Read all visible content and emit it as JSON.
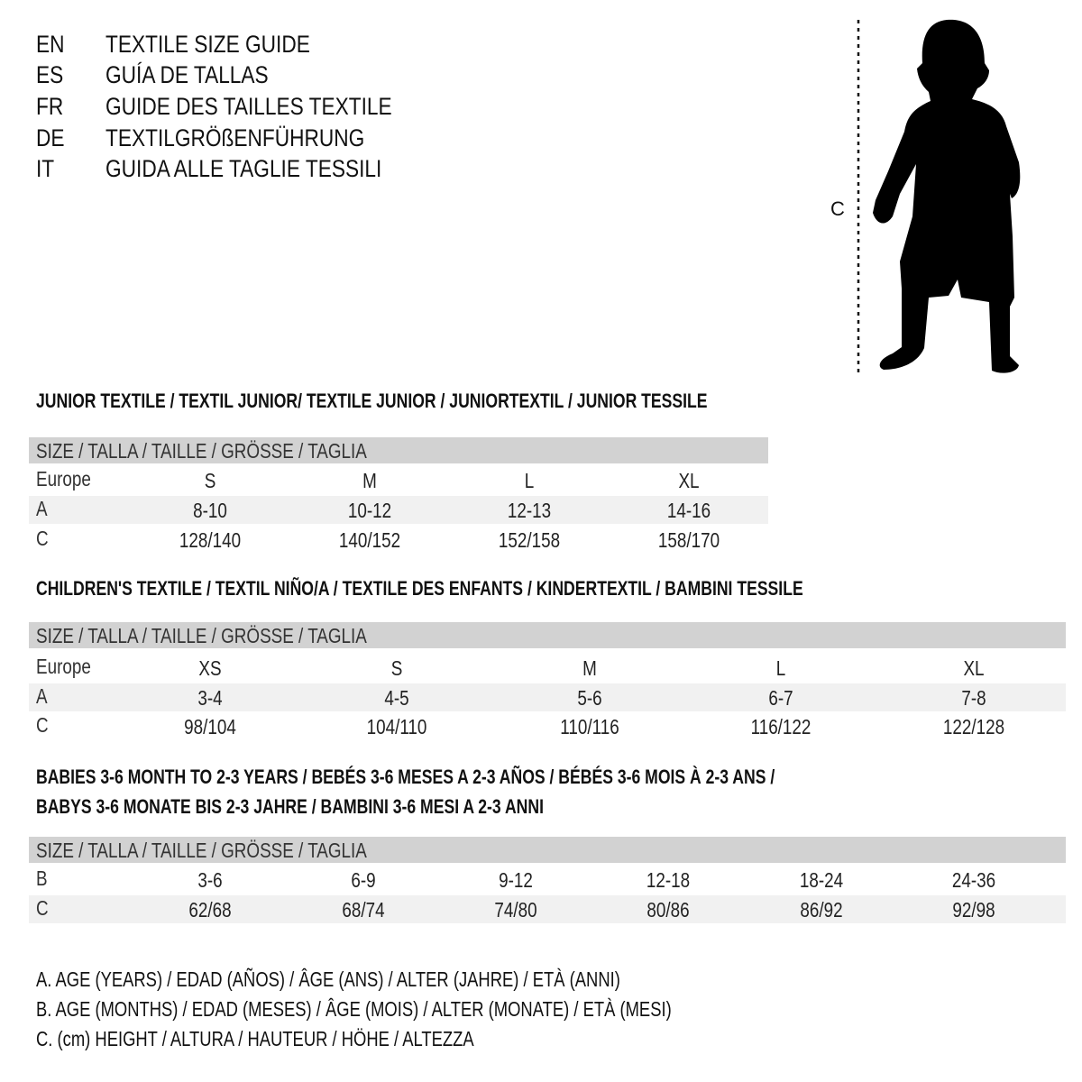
{
  "title_lines": [
    {
      "code": "EN",
      "text": "TEXTILE SIZE GUIDE"
    },
    {
      "code": "ES",
      "text": "GUÍA DE TALLAS"
    },
    {
      "code": "FR",
      "text": "GUIDE DES TAILLES TEXTILE"
    },
    {
      "code": "DE",
      "text": "TEXTILGRÖßENFÜHRUNG"
    },
    {
      "code": "IT",
      "text": "GUIDA ALLE TAGLIE TESSILI"
    }
  ],
  "figure": {
    "measure_label": "C",
    "icon": "child-silhouette-icon"
  },
  "colors": {
    "header_bar": "#d2d2d2",
    "shaded_row": "#f1f1f1",
    "text": "#111111"
  },
  "sections": [
    {
      "title": [
        "JUNIOR TEXTILE / TEXTIL JUNIOR/ TEXTILE JUNIOR / JUNIORTEXTIL / JUNIOR TESSILE"
      ],
      "size_header": "SIZE / TALLA / TAILLE / GRÖSSE / TAGLIA",
      "rows": [
        {
          "label": "Europe",
          "values": [
            "S",
            "M",
            "L",
            "XL"
          ]
        },
        {
          "label": "A",
          "values": [
            "8-10",
            "10-12",
            "12-13",
            "14-16"
          ]
        },
        {
          "label": "C",
          "values": [
            "128/140",
            "140/152",
            "152/158",
            "158/170"
          ]
        }
      ]
    },
    {
      "title": [
        "CHILDREN'S TEXTILE / TEXTIL NIÑO/A / TEXTILE DES ENFANTS / KINDERTEXTIL / BAMBINI TESSILE"
      ],
      "size_header": "SIZE / TALLA / TAILLE / GRÖSSE / TAGLIA",
      "rows": [
        {
          "label": "Europe",
          "values": [
            "XS",
            "S",
            "M",
            "L",
            "XL"
          ]
        },
        {
          "label": "A",
          "values": [
            "3-4",
            "4-5",
            "5-6",
            "6-7",
            "7-8"
          ]
        },
        {
          "label": "C",
          "values": [
            "98/104",
            "104/110",
            "110/116",
            "116/122",
            "122/128"
          ]
        }
      ]
    },
    {
      "title": [
        "BABIES 3-6 MONTH TO 2-3 YEARS / BEBÉS 3-6 MESES A 2-3 AÑOS / BÉBÉS 3-6 MOIS À 2-3 ANS /",
        "BABYS 3-6 MONATE BIS 2-3 JAHRE / BAMBINI 3-6 MESI A 2-3 ANNI"
      ],
      "size_header": "SIZE / TALLA / TAILLE / GRÖSSE / TAGLIA",
      "rows": [
        {
          "label": "B",
          "values": [
            "3-6",
            "6-9",
            "9-12",
            "12-18",
            "18-24",
            "24-36"
          ]
        },
        {
          "label": "C",
          "values": [
            "62/68",
            "68/74",
            "74/80",
            "80/86",
            "86/92",
            "92/98"
          ]
        }
      ]
    }
  ],
  "legend": [
    "A. AGE (YEARS) / EDAD (AÑOS) / ÂGE (ANS) / ALTER (JAHRE) / ETÀ (ANNI)",
    "B. AGE (MONTHS) / EDAD (MESES) / ÂGE (MOIS) / ALTER (MONATE) / ETÀ (MESI)",
    "C. (cm) HEIGHT / ALTURA / HAUTEUR / HÖHE / ALTEZZA"
  ]
}
